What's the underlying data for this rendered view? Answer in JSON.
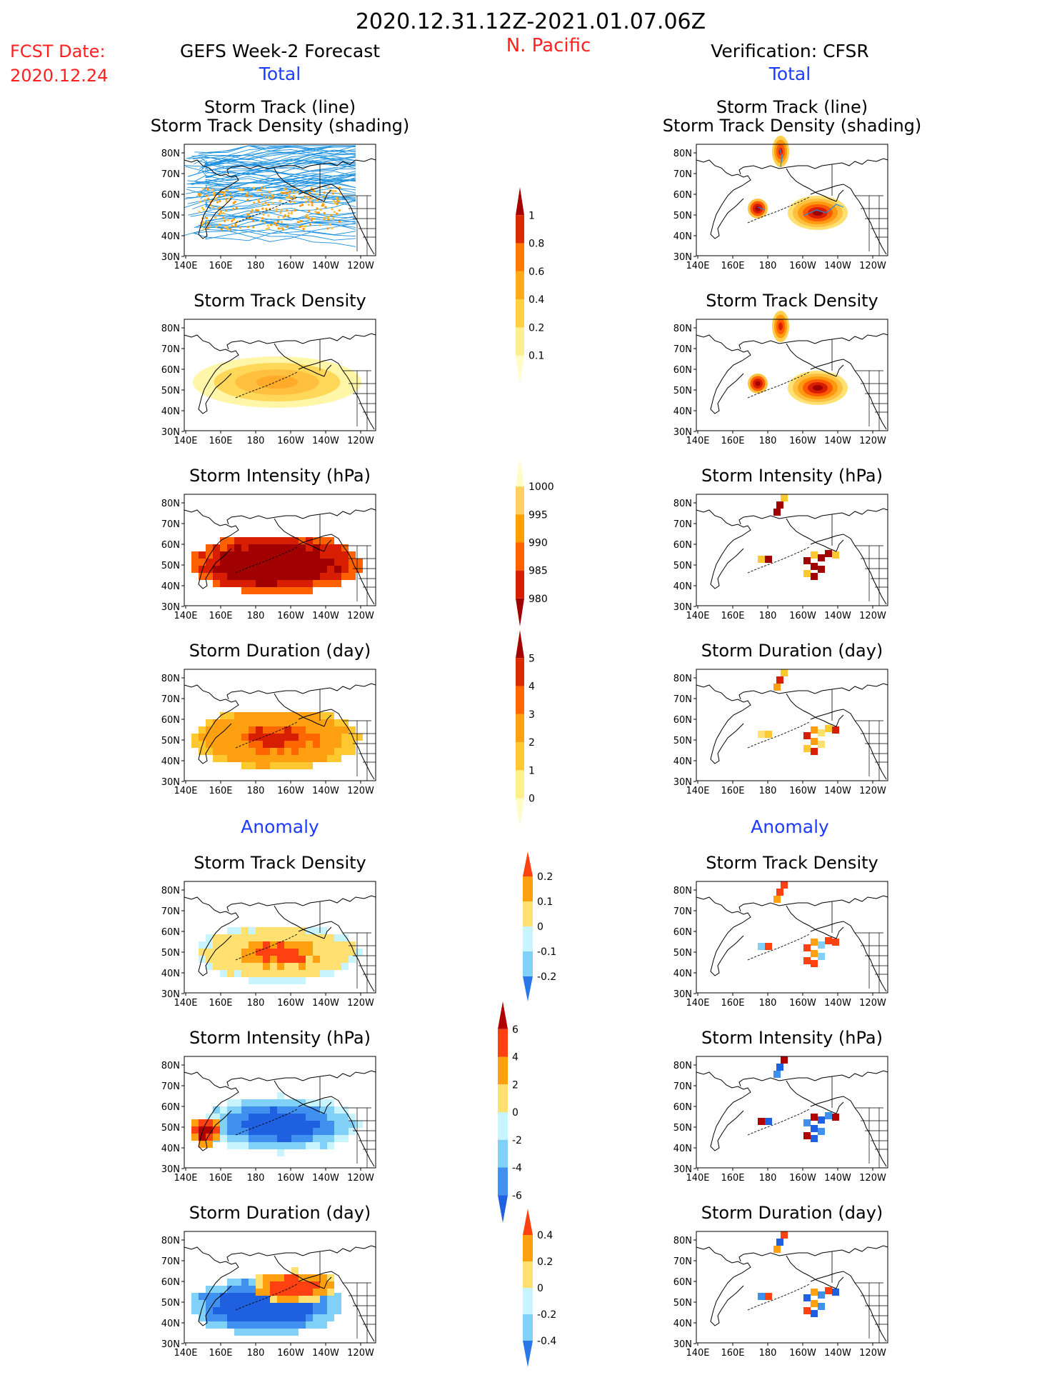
{
  "header": {
    "period": "2020.12.31.12Z-2021.01.07.06Z",
    "region": "N. Pacific",
    "fcst_label": "FCST Date:",
    "fcst_date": "2020.12.24",
    "left_title": "GEFS Week-2 Forecast",
    "right_title": "Verification: CFSR",
    "total_label": "Total",
    "anomaly_label": "Anomaly"
  },
  "colors": {
    "title_red": "#ff2020",
    "label_blue": "#1e3cff",
    "track_line": "#1a90e0",
    "frame": "#000000"
  },
  "axes": {
    "lon_ticks": [
      "140E",
      "160E",
      "180",
      "160W",
      "140W",
      "120W"
    ],
    "lat_ticks": [
      "80N",
      "70N",
      "60N",
      "50N",
      "40N",
      "30N"
    ]
  },
  "panels": {
    "track_line_title1": "Storm Track (line)",
    "track_line_title2": "Storm Track Density (shading)",
    "density": "Storm Track Density",
    "intensity": "Storm Intensity (hPa)",
    "duration": "Storm Duration (day)"
  },
  "colorbars": {
    "total_density": {
      "labels": [
        "1",
        "0.8",
        "0.6",
        "0.4",
        "0.2",
        "0.1"
      ],
      "colors": [
        "#a50000",
        "#dc2a00",
        "#ff7a00",
        "#ffaa1a",
        "#ffd040",
        "#ffef90",
        "#fffcc8"
      ]
    },
    "total_intensity": {
      "labels": [
        "1000",
        "995",
        "990",
        "985",
        "980"
      ],
      "colors": [
        "#fffcc8",
        "#ffd060",
        "#ffa000",
        "#ff6000",
        "#d81e00",
        "#a00000"
      ]
    },
    "total_duration": {
      "labels": [
        "5",
        "4",
        "3",
        "2",
        "1",
        "0"
      ],
      "colors": [
        "#a50000",
        "#dc2a00",
        "#ff6600",
        "#ffa010",
        "#ffc830",
        "#fff08c",
        "#fffcc8"
      ]
    },
    "anom_density": {
      "labels": [
        "0.2",
        "0.1",
        "0",
        "-0.1",
        "-0.2"
      ],
      "colors": [
        "#ff4010",
        "#ffa010",
        "#ffe070",
        "#c8f4ff",
        "#80d0f8",
        "#2a78e8"
      ]
    },
    "anom_intensity": {
      "labels": [
        "6",
        "4",
        "2",
        "0",
        "-2",
        "-4",
        "-6"
      ],
      "colors": [
        "#b00000",
        "#ff4010",
        "#ffa010",
        "#ffe070",
        "#c8f4ff",
        "#80d0f8",
        "#4090f0",
        "#1e60e0"
      ]
    },
    "anom_duration": {
      "labels": [
        "0.4",
        "0.2",
        "0",
        "-0.2",
        "-0.4"
      ],
      "colors": [
        "#ff4010",
        "#ffa010",
        "#ffe070",
        "#c8f4ff",
        "#80d0f8",
        "#2a78e8"
      ]
    }
  }
}
